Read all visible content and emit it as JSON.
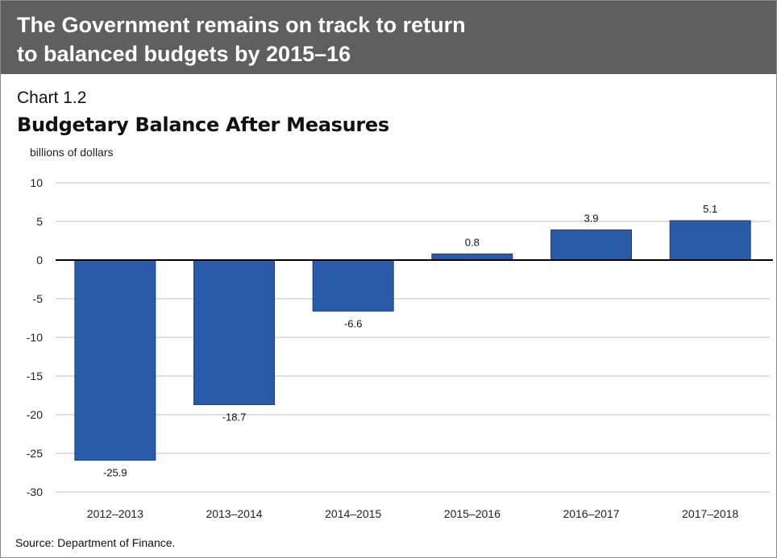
{
  "header": {
    "title_line1": "The Government remains on track to return",
    "title_line2": "to balanced budgets by 2015–16"
  },
  "chart_number": "Chart 1.2",
  "source": "Source: Department of Finance.",
  "colors": {
    "bar": "#2a5ba8",
    "bar_edge": "#1c3f78",
    "grid": "#bdbdbd",
    "banner": "#5f5f5f"
  },
  "chart_data": {
    "type": "bar",
    "title": "Budgetary Balance After Measures",
    "xlabel": "",
    "ylabel": "billions of dollars",
    "categories": [
      "2012–2013",
      "2013–2014",
      "2014–2015",
      "2015–2016",
      "2016–2017",
      "2017–2018"
    ],
    "values": [
      -25.9,
      -18.7,
      -6.6,
      0.8,
      3.9,
      5.1
    ],
    "data_labels": [
      "-25.9",
      "-18.7",
      "-6.6",
      "0.8",
      "3.9",
      "5.1"
    ],
    "ylim": [
      -30,
      10
    ],
    "yticks": [
      10,
      5,
      0,
      -5,
      -10,
      -15,
      -20,
      -25,
      -30
    ],
    "grid": true,
    "legend": "none"
  }
}
